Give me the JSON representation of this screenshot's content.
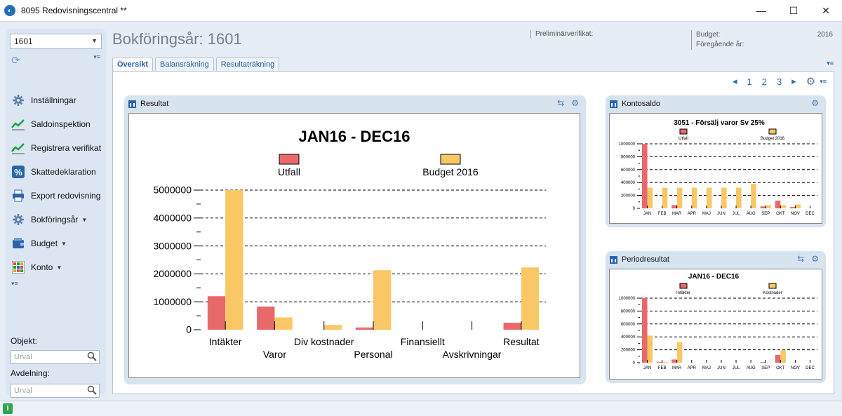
{
  "window": {
    "title": "8095 Redovisningscentral **",
    "minimize": "—",
    "maximize": "☐",
    "close": "✕"
  },
  "sidebar": {
    "year_value": "1601",
    "items": [
      {
        "label": "Inställningar",
        "icon": "gear-icon",
        "caret": false
      },
      {
        "label": "Saldoinspektion",
        "icon": "trend-chart-icon",
        "caret": false
      },
      {
        "label": "Registrera verifikat",
        "icon": "trend-chart-icon",
        "caret": false
      },
      {
        "label": "Skattedeklaration",
        "icon": "percent-icon",
        "caret": false
      },
      {
        "label": "Export redovisning",
        "icon": "printer-icon",
        "caret": false
      },
      {
        "label": "Bokföringsår",
        "icon": "gear-icon",
        "caret": true
      },
      {
        "label": "Budget",
        "icon": "wallet-icon",
        "caret": true
      },
      {
        "label": "Konto",
        "icon": "grid-icon",
        "caret": true
      }
    ],
    "objekt_label": "Objekt:",
    "objekt_placeholder": "Urval",
    "avdelning_label": "Avdelning:",
    "avdelning_placeholder": "Urval"
  },
  "header": {
    "title": "Bokföringsår: 1601",
    "prelim_label": "Preliminärverifikat:",
    "budget_label": "Budget:",
    "budget_value": "2016",
    "prev_year_label": "Föregående år:"
  },
  "tabs": [
    {
      "label": "Översikt",
      "active": true
    },
    {
      "label": "Balansräkning",
      "active": false
    },
    {
      "label": "Resultaträkning",
      "active": false
    }
  ],
  "pager": {
    "prev": "◂",
    "pages": [
      "1",
      "2",
      "3"
    ],
    "next": "▸"
  },
  "panels": {
    "resultat": {
      "title": "Resultat"
    },
    "kontosaldo": {
      "title": "Kontosaldo"
    },
    "periodresultat": {
      "title": "Periodresultat"
    }
  },
  "chart_data": [
    {
      "id": "resultat",
      "type": "bar",
      "title": "JAN16 - DEC16",
      "categories": [
        "Intäkter",
        "Varor",
        "Div kostnader",
        "Personal",
        "Finansiellt",
        "Avskrivningar",
        "Resultat"
      ],
      "series": [
        {
          "name": "Utfall",
          "color": "#e8696a",
          "values": [
            1200000,
            830000,
            0,
            80000,
            0,
            0,
            250000
          ]
        },
        {
          "name": "Budget 2016",
          "color": "#f9c766",
          "values": [
            5000000,
            440000,
            170000,
            2130000,
            0,
            0,
            2230000
          ]
        }
      ],
      "yticks": [
        "0",
        "1000000",
        "2000000",
        "3000000",
        "4000000",
        "5000000"
      ],
      "ylim": [
        0,
        5000000
      ],
      "legend": "top",
      "grid": true
    },
    {
      "id": "kontosaldo",
      "type": "bar",
      "title": "3051   - Försälj varor Sv 25%",
      "categories": [
        "JAN",
        "FEB",
        "MAR",
        "APR",
        "MAJ",
        "JUN",
        "JUL",
        "AUG",
        "SEP",
        "OKT",
        "NOV",
        "DEC"
      ],
      "series": [
        {
          "name": "Utfall",
          "color": "#e8696a",
          "values": [
            1000000,
            0,
            50000,
            0,
            0,
            0,
            0,
            0,
            30000,
            120000,
            20000,
            0
          ]
        },
        {
          "name": "Budget 2016",
          "color": "#f9c766",
          "values": [
            320000,
            320000,
            320000,
            320000,
            320000,
            320000,
            320000,
            380000,
            50000,
            50000,
            60000,
            0
          ]
        }
      ],
      "yticks": [
        "0",
        "200000",
        "400000",
        "600000",
        "800000",
        "1000000"
      ],
      "ylim": [
        0,
        1000000
      ],
      "legend": "top",
      "grid": true
    },
    {
      "id": "periodresultat",
      "type": "bar",
      "title": "JAN16 - DEC16",
      "categories": [
        "JAN",
        "FEB",
        "MAR",
        "APR",
        "MAJ",
        "JUN",
        "JUL",
        "AUG",
        "SEP",
        "OKT",
        "NOV",
        "DEC"
      ],
      "series": [
        {
          "name": "Intäkter",
          "color": "#e8696a",
          "values": [
            1000000,
            10000,
            50000,
            0,
            0,
            0,
            0,
            0,
            10000,
            120000,
            0,
            0
          ]
        },
        {
          "name": "Kostnader",
          "color": "#f9c766",
          "values": [
            420000,
            10000,
            320000,
            0,
            0,
            0,
            0,
            0,
            0,
            190000,
            0,
            0
          ]
        }
      ],
      "yticks": [
        "0",
        "200000",
        "400000",
        "600000",
        "800000",
        "1000000"
      ],
      "ylim": [
        0,
        1000000
      ],
      "legend": "top",
      "grid": true
    }
  ]
}
